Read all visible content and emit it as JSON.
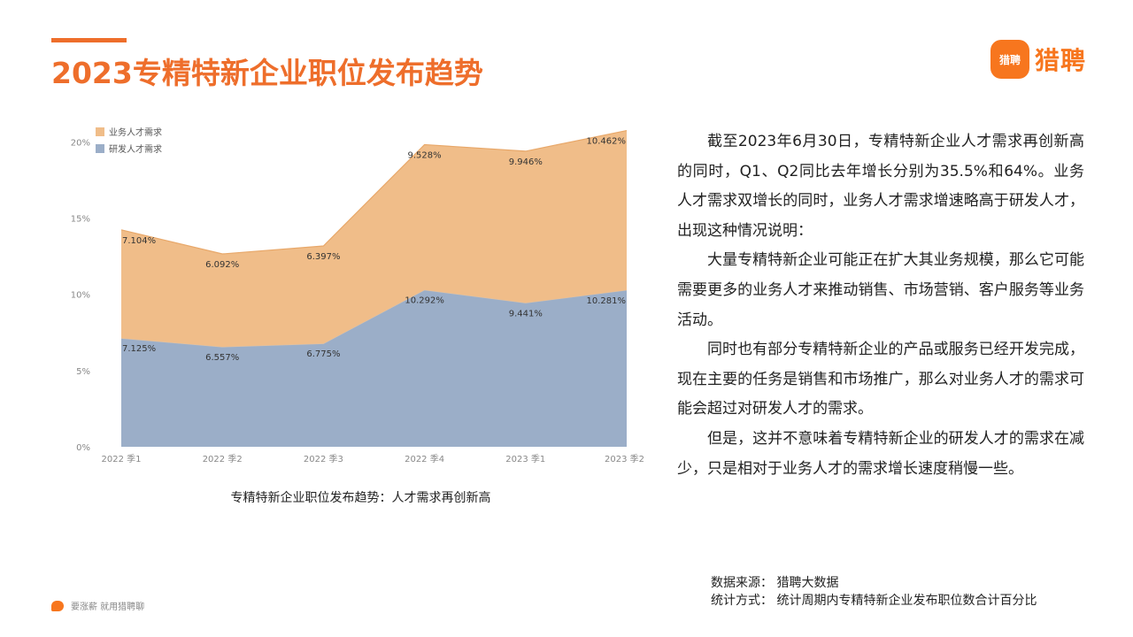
{
  "header": {
    "title": "2023专精特新企业职位发布趋势",
    "logo_badge": "猎聘",
    "logo_text": "猎聘"
  },
  "chart_caption": "专精特新企业职位发布趋势：人才需求再创新高",
  "analysis": [
    "截至2023年6月30日，专精特新企业人才需求再创新高的同时，Q1、Q2同比去年增长分别为35.5%和64%。业务人才需求双增长的同时，业务人才需求增速略高于研发人才，出现这种情况说明：",
    "大量专精特新企业可能正在扩大其业务规模，那么它可能需要更多的业务人才来推动销售、市场营销、客户服务等业务活动。",
    "同时也有部分专精特新企业的产品或服务已经开发完成，现在主要的任务是销售和市场推广，那么对业务人才的需求可能会超过对研发人才的需求。",
    "但是，这并不意味着专精特新企业的研发人才的需求在减少，只是相对于业务人才的需求增长速度稍慢一些。"
  ],
  "footer": {
    "source": "数据来源：  猎聘大数据",
    "method": "统计方式：  统计周期内专精特新企业发布职位数合计百分比"
  },
  "slogan": "要涨薪 就用猎聘聊",
  "chart_data": {
    "type": "area",
    "stacked": true,
    "categories": [
      "2022 季1",
      "2022 季2",
      "2022 季3",
      "2022 季4",
      "2023 季1",
      "2023 季2"
    ],
    "series": [
      {
        "name": "研发人才需求",
        "values": [
          7.125,
          6.557,
          6.775,
          10.292,
          9.441,
          10.281
        ],
        "labels": [
          "7.125%",
          "6.557%",
          "6.775%",
          "10.292%",
          "9.441%",
          "10.281%"
        ],
        "color": "#9baec8"
      },
      {
        "name": "业务人才需求",
        "values": [
          7.104,
          6.092,
          6.397,
          9.528,
          9.946,
          10.462
        ],
        "labels": [
          "7.104%",
          "6.092%",
          "6.397%",
          "9.528%",
          "9.946%",
          "10.462%"
        ],
        "color": "#f0bd89"
      }
    ],
    "y_ticks": [
      "0%",
      "5%",
      "10%",
      "15%",
      "20%"
    ],
    "y_tick_values": [
      0,
      5,
      10,
      15,
      20
    ],
    "ylim": [
      0,
      20.6
    ],
    "legend_position": "top-left",
    "grid": false
  }
}
